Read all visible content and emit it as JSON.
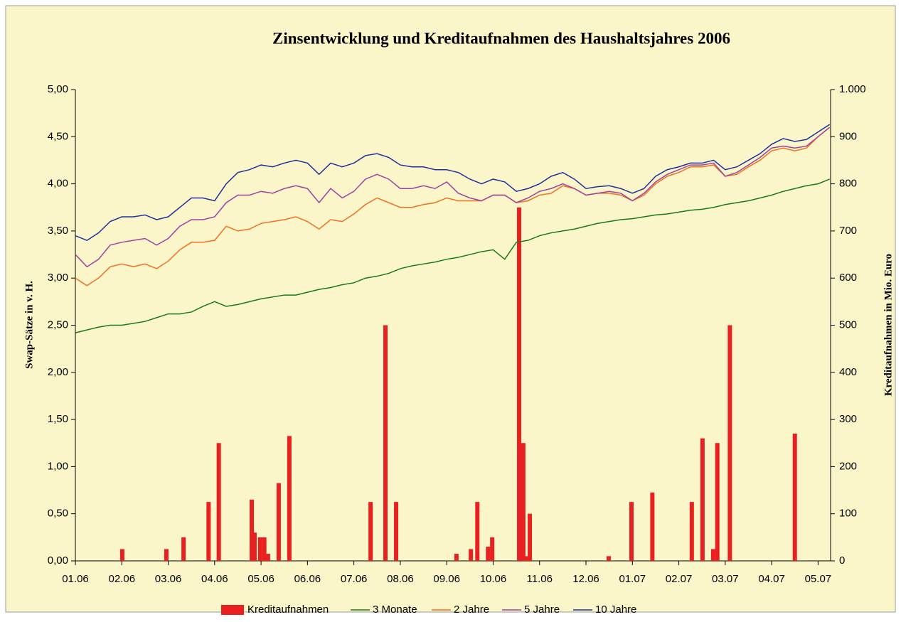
{
  "chart_data": {
    "type": "line",
    "title": "Zinsentwicklung und Kreditaufnahmen des Haushaltsjahres 2006",
    "ylabel": "Swap-Sätze in v. H.",
    "y2label": "Kreditaufnahmen in Mio. Euro",
    "x": [
      0,
      0.25,
      0.5,
      0.75,
      1,
      1.25,
      1.5,
      1.75,
      2,
      2.25,
      2.5,
      2.75,
      3,
      3.25,
      3.5,
      3.75,
      4,
      4.25,
      4.5,
      4.75,
      5,
      5.25,
      5.5,
      5.75,
      6,
      6.25,
      6.5,
      6.75,
      7,
      7.25,
      7.5,
      7.75,
      8,
      8.25,
      8.5,
      8.75,
      9,
      9.25,
      9.5,
      9.75,
      10,
      10.25,
      10.5,
      10.75,
      11,
      11.25,
      11.5,
      11.75,
      12,
      12.25,
      12.5,
      12.75,
      13,
      13.25,
      13.5,
      13.75,
      14,
      14.25,
      14.5,
      14.75,
      15,
      15.25,
      15.5,
      15.75,
      16,
      16.25
    ],
    "xlim": [
      0,
      16.27
    ],
    "xticks": [
      {
        "value": 0,
        "label": "01.06"
      },
      {
        "value": 1,
        "label": "02.06"
      },
      {
        "value": 2,
        "label": "03.06"
      },
      {
        "value": 3,
        "label": "04.06"
      },
      {
        "value": 4,
        "label": "05.06"
      },
      {
        "value": 5,
        "label": "06.06"
      },
      {
        "value": 6,
        "label": "07.06"
      },
      {
        "value": 7,
        "label": "08.06"
      },
      {
        "value": 8,
        "label": "09.06"
      },
      {
        "value": 9,
        "label": "10.06"
      },
      {
        "value": 10,
        "label": "11.06"
      },
      {
        "value": 11,
        "label": "12.06"
      },
      {
        "value": 12,
        "label": "01.07"
      },
      {
        "value": 13,
        "label": "02.07"
      },
      {
        "value": 14,
        "label": "03.07"
      },
      {
        "value": 15,
        "label": "04.07"
      },
      {
        "value": 16,
        "label": "05.07"
      }
    ],
    "ylim": [
      0,
      5
    ],
    "yticks": [
      {
        "value": 0,
        "label": "0,00"
      },
      {
        "value": 0.5,
        "label": "0,50"
      },
      {
        "value": 1,
        "label": "1,00"
      },
      {
        "value": 1.5,
        "label": "1,50"
      },
      {
        "value": 2,
        "label": "2,00"
      },
      {
        "value": 2.5,
        "label": "2,50"
      },
      {
        "value": 3,
        "label": "3,00"
      },
      {
        "value": 3.5,
        "label": "3,50"
      },
      {
        "value": 4,
        "label": "4,00"
      },
      {
        "value": 4.5,
        "label": "4,50"
      },
      {
        "value": 5,
        "label": "5,00"
      }
    ],
    "y2lim": [
      0,
      1000
    ],
    "y2ticks": [
      0,
      100,
      200,
      300,
      400,
      500,
      600,
      700,
      800,
      900,
      {
        "value": 1000,
        "label": "1.000"
      }
    ],
    "series": [
      {
        "name": "Kreditaufnahmen",
        "type": "bar",
        "axis": "y2",
        "color": "#e82020",
        "x": [
          1.01,
          1.96,
          2.33,
          2.87,
          3.09,
          3.8,
          3.86,
          3.98,
          4.07,
          4.15,
          4.38,
          4.61,
          6.36,
          6.68,
          6.91,
          8.21,
          8.52,
          8.66,
          8.89,
          8.98,
          9.56,
          9.65,
          9.73,
          9.79,
          11.49,
          11.98,
          12.43,
          13.28,
          13.51,
          13.74,
          13.83,
          14.1,
          15.5
        ],
        "values": [
          25,
          25,
          50,
          125,
          250,
          130,
          60,
          50,
          50,
          15,
          165,
          265,
          125,
          500,
          125,
          15,
          25,
          125,
          30,
          50,
          750,
          250,
          10,
          100,
          10,
          125,
          145,
          125,
          260,
          25,
          250,
          500,
          270
        ]
      },
      {
        "name": "3 Monate",
        "color": "#1a7a1a",
        "values": [
          2.42,
          2.45,
          2.48,
          2.5,
          2.5,
          2.52,
          2.54,
          2.58,
          2.62,
          2.62,
          2.64,
          2.7,
          2.75,
          2.7,
          2.72,
          2.75,
          2.78,
          2.8,
          2.82,
          2.82,
          2.85,
          2.88,
          2.9,
          2.93,
          2.95,
          3.0,
          3.02,
          3.05,
          3.1,
          3.13,
          3.15,
          3.17,
          3.2,
          3.22,
          3.25,
          3.28,
          3.3,
          3.2,
          3.38,
          3.4,
          3.45,
          3.48,
          3.5,
          3.52,
          3.55,
          3.58,
          3.6,
          3.62,
          3.63,
          3.65,
          3.67,
          3.68,
          3.7,
          3.72,
          3.73,
          3.75,
          3.78,
          3.8,
          3.82,
          3.85,
          3.88,
          3.92,
          3.95,
          3.98,
          4.0,
          4.05
        ]
      },
      {
        "name": "2 Jahre",
        "color": "#f07020",
        "values": [
          3.0,
          2.92,
          3.0,
          3.12,
          3.15,
          3.12,
          3.15,
          3.1,
          3.18,
          3.3,
          3.38,
          3.38,
          3.4,
          3.55,
          3.5,
          3.52,
          3.58,
          3.6,
          3.62,
          3.65,
          3.6,
          3.52,
          3.62,
          3.6,
          3.68,
          3.78,
          3.85,
          3.8,
          3.75,
          3.75,
          3.78,
          3.8,
          3.85,
          3.82,
          3.82,
          3.82,
          3.88,
          3.88,
          3.8,
          3.82,
          3.88,
          3.9,
          3.98,
          3.95,
          3.88,
          3.9,
          3.9,
          3.88,
          3.82,
          3.88,
          4.0,
          4.08,
          4.12,
          4.18,
          4.18,
          4.2,
          4.08,
          4.1,
          4.18,
          4.25,
          4.35,
          4.38,
          4.35,
          4.38,
          4.5,
          4.6
        ]
      },
      {
        "name": "5 Jahre",
        "color": "#a040a0",
        "values": [
          3.25,
          3.12,
          3.2,
          3.35,
          3.38,
          3.4,
          3.42,
          3.35,
          3.42,
          3.55,
          3.62,
          3.62,
          3.65,
          3.8,
          3.88,
          3.88,
          3.92,
          3.9,
          3.95,
          3.98,
          3.95,
          3.8,
          3.95,
          3.85,
          3.92,
          4.05,
          4.1,
          4.05,
          3.95,
          3.95,
          3.98,
          3.95,
          4.02,
          3.9,
          3.85,
          3.82,
          3.88,
          3.88,
          3.8,
          3.85,
          3.92,
          3.95,
          4.0,
          3.95,
          3.88,
          3.9,
          3.92,
          3.9,
          3.82,
          3.9,
          4.02,
          4.1,
          4.15,
          4.2,
          4.2,
          4.22,
          4.08,
          4.12,
          4.2,
          4.28,
          4.38,
          4.4,
          4.38,
          4.4,
          4.5,
          4.6
        ]
      },
      {
        "name": "10 Jahre",
        "color": "#20309a",
        "values": [
          3.45,
          3.4,
          3.48,
          3.6,
          3.65,
          3.65,
          3.67,
          3.62,
          3.65,
          3.75,
          3.85,
          3.85,
          3.82,
          4.0,
          4.12,
          4.15,
          4.2,
          4.18,
          4.22,
          4.25,
          4.22,
          4.1,
          4.22,
          4.18,
          4.22,
          4.3,
          4.32,
          4.28,
          4.2,
          4.18,
          4.18,
          4.15,
          4.15,
          4.12,
          4.05,
          4.0,
          4.05,
          4.02,
          3.92,
          3.95,
          4.0,
          4.08,
          4.12,
          4.05,
          3.95,
          3.97,
          3.98,
          3.95,
          3.9,
          3.95,
          4.08,
          4.15,
          4.18,
          4.22,
          4.22,
          4.25,
          4.15,
          4.18,
          4.25,
          4.32,
          4.42,
          4.48,
          4.45,
          4.47,
          4.55,
          4.63
        ]
      }
    ],
    "legend": "bottom"
  }
}
